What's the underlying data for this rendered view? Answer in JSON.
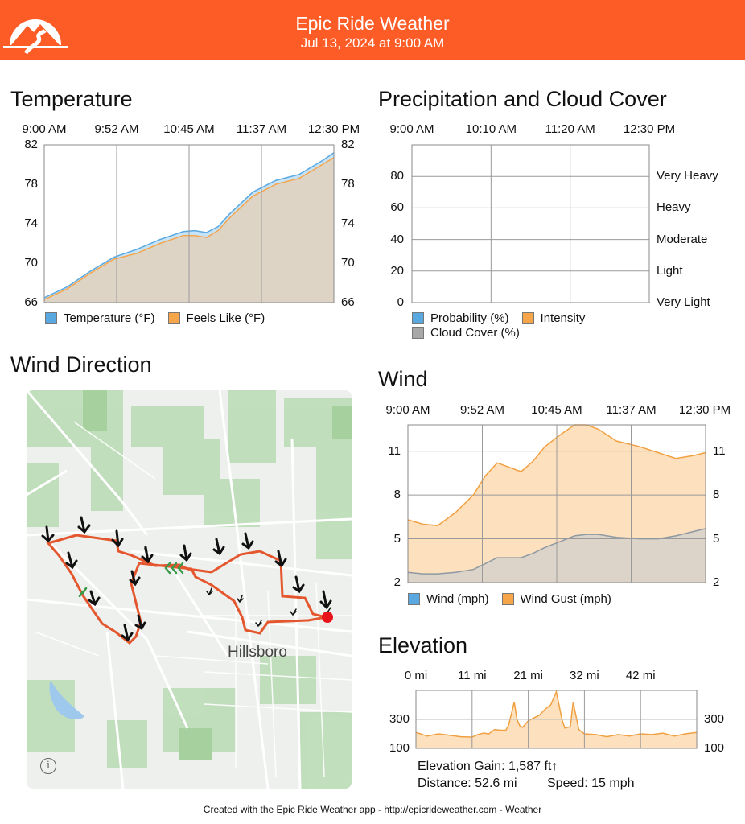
{
  "header": {
    "title": "Epic Ride Weather",
    "subtitle": "Jul 13, 2024 at 9:00 AM",
    "logo_icon": "mountain-road-logo-icon"
  },
  "colors": {
    "brand": "#fd5c27",
    "temperature": "#5aa8e0",
    "feels_like": "#f6a54b",
    "route": "#e4572e",
    "wind_fill": "#fde0bd",
    "gust_line": "#f0a040"
  },
  "temperature": {
    "title": "Temperature",
    "chart_data": {
      "type": "area",
      "title": "Temperature",
      "x_tick_labels": [
        "9:00 AM",
        "9:52 AM",
        "10:45 AM",
        "11:37 AM",
        "12:30 PM"
      ],
      "y_ticks": [
        66,
        70,
        74,
        78,
        82
      ],
      "ylim": [
        66,
        82
      ],
      "x": [
        0,
        8,
        16,
        24,
        32,
        40,
        48,
        52,
        56,
        60,
        64,
        72,
        80,
        88,
        96,
        100
      ],
      "series": [
        {
          "name": "Temperature (°F)",
          "values": [
            66.5,
            67.6,
            69.2,
            70.6,
            71.4,
            72.4,
            73.2,
            73.3,
            73.1,
            73.7,
            75.0,
            77.2,
            78.4,
            79.0,
            80.4,
            81.2
          ]
        },
        {
          "name": "Feels Like (°F)",
          "values": [
            66.3,
            67.4,
            69.0,
            70.4,
            71.0,
            72.0,
            72.8,
            72.8,
            72.6,
            73.3,
            74.6,
            76.8,
            78.0,
            78.6,
            80.0,
            80.7
          ]
        }
      ],
      "legend": [
        "Temperature (°F)",
        "Feels Like (°F)"
      ],
      "grid": true
    }
  },
  "precipitation": {
    "title": "Precipitation and Cloud Cover",
    "chart_data": {
      "type": "area",
      "title": "Precipitation and Cloud Cover",
      "x_tick_labels": [
        "9:00 AM",
        "10:10 AM",
        "11:20 AM",
        "12:30 PM"
      ],
      "y_ticks": [
        0,
        20,
        40,
        60,
        80
      ],
      "ylim": [
        0,
        100
      ],
      "right_tick_labels": [
        "Very Light",
        "Light",
        "Moderate",
        "Heavy",
        "Very Heavy"
      ],
      "series": [
        {
          "name": "Probability (%)",
          "values": [
            0,
            0,
            0,
            0
          ]
        },
        {
          "name": "Intensity",
          "values": [
            0,
            0,
            0,
            0
          ]
        },
        {
          "name": "Cloud Cover (%)",
          "values": [
            0,
            0,
            0,
            0
          ]
        }
      ],
      "legend": [
        "Probability (%)",
        "Intensity",
        "Cloud Cover (%)"
      ],
      "grid": true
    }
  },
  "wind_direction": {
    "title": "Wind Direction",
    "map_label": "Hillsboro",
    "info_symbol": "i"
  },
  "wind": {
    "title": "Wind",
    "chart_data": {
      "type": "area",
      "title": "Wind",
      "x_tick_labels": [
        "9:00 AM",
        "9:52 AM",
        "10:45 AM",
        "11:37 AM",
        "12:30 PM"
      ],
      "y_ticks": [
        2,
        5,
        8,
        11
      ],
      "ylim": [
        2,
        12.8
      ],
      "x": [
        0,
        5,
        10,
        16,
        22,
        26,
        30,
        34,
        38,
        42,
        46,
        51,
        56,
        60,
        64,
        70,
        78,
        84,
        90,
        96,
        100
      ],
      "series": [
        {
          "name": "Wind (mph)",
          "values": [
            2.7,
            2.6,
            2.6,
            2.7,
            2.9,
            3.3,
            3.7,
            3.7,
            3.7,
            4.0,
            4.4,
            4.8,
            5.2,
            5.3,
            5.3,
            5.1,
            5.0,
            5.0,
            5.2,
            5.5,
            5.7
          ]
        },
        {
          "name": "Wind Gust (mph)",
          "values": [
            6.3,
            6.0,
            5.9,
            6.8,
            8.0,
            9.3,
            10.2,
            9.9,
            9.6,
            10.3,
            11.3,
            12.1,
            12.8,
            12.8,
            12.5,
            11.7,
            11.3,
            10.9,
            10.5,
            10.7,
            10.9
          ]
        }
      ],
      "legend": [
        "Wind (mph)",
        "Wind Gust (mph)"
      ],
      "grid": true
    }
  },
  "elevation": {
    "title": "Elevation",
    "chart_data": {
      "type": "area",
      "title": "Elevation",
      "x_tick_labels": [
        "0 mi",
        "11 mi",
        "21 mi",
        "32 mi",
        "42 mi"
      ],
      "y_ticks": [
        100,
        300
      ],
      "ylim": [
        100,
        500
      ],
      "x": [
        0,
        4,
        8,
        12,
        16,
        20,
        22,
        24,
        26,
        28,
        30,
        32,
        33,
        35,
        36,
        37,
        38,
        40,
        42,
        44,
        46,
        48,
        50,
        52,
        53,
        55,
        56,
        58,
        60,
        64,
        68,
        72,
        76,
        80,
        84,
        88,
        92,
        96,
        100
      ],
      "values": [
        210,
        185,
        200,
        190,
        180,
        178,
        195,
        205,
        200,
        230,
        225,
        225,
        260,
        420,
        300,
        255,
        245,
        290,
        310,
        330,
        370,
        400,
        490,
        300,
        240,
        250,
        420,
        230,
        200,
        195,
        180,
        195,
        185,
        200,
        195,
        205,
        185,
        200,
        210
      ],
      "grid": true
    },
    "stats": {
      "gain": "Elevation Gain: 1,587 ft↑",
      "distance": "Distance: 52.6 mi",
      "speed": "Speed: 15 mph"
    }
  },
  "footer": {
    "text": "Created with the Epic Ride Weather app - http://epicrideweather.com -  Weather",
    "apple_icon": "apple-icon"
  }
}
